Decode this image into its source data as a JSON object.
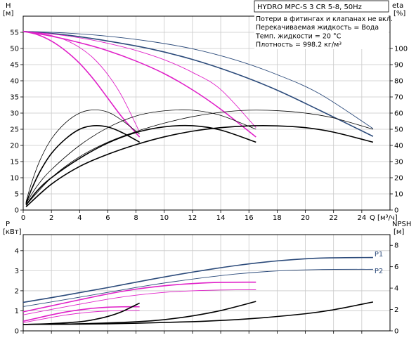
{
  "chart_data": [
    {
      "id": "performance",
      "type": "line",
      "header": "HYDRO MPC-S 3 CR 5-8, 50Hz",
      "notes": [
        "Потери в фитингах и клапанах не вкл.",
        "Перекачиваемая жидкость = Вода",
        "Темп. жидкости = 20 °C",
        "Плотность = 998.2 кг/м³"
      ],
      "xlabel": "Q [м³/ч]",
      "ylabel_left_top": "H",
      "ylabel_left_bottom": "[м]",
      "ylabel_right_top": "eta",
      "ylabel_right_bottom": "[%]",
      "xlim": [
        0,
        26
      ],
      "ylim_left": [
        0,
        60
      ],
      "ylim_right": [
        0,
        120
      ],
      "xticks": [
        0,
        2,
        4,
        6,
        8,
        10,
        12,
        14,
        16,
        18,
        20,
        22,
        24
      ],
      "yticks_left": [
        0,
        5,
        10,
        15,
        20,
        25,
        30,
        35,
        40,
        45,
        50,
        55
      ],
      "yticks_right": [
        0,
        10,
        20,
        30,
        40,
        50,
        60,
        70,
        80,
        90,
        100
      ],
      "grid": true,
      "colors": {
        "navy": "#2b4a7a",
        "magenta": "#e020c8",
        "black": "#000000",
        "grid": "#c8c8c8"
      },
      "series": [
        {
          "axis": "left",
          "color": "navy",
          "width": 1.6,
          "x": [
            0,
            3,
            6,
            9,
            12,
            15,
            18,
            21,
            24.8
          ],
          "y": [
            55.3,
            54.2,
            52.3,
            49.9,
            46.6,
            42.3,
            37.1,
            30.9,
            22.8
          ]
        },
        {
          "axis": "left",
          "color": "navy",
          "width": 0.9,
          "x": [
            0,
            3,
            6,
            9,
            12,
            15,
            18,
            21,
            24.8
          ],
          "y": [
            55.3,
            54.8,
            53.8,
            52.2,
            49.9,
            46.5,
            41.9,
            36.0,
            25.2
          ]
        },
        {
          "axis": "left",
          "color": "magenta",
          "width": 1.6,
          "x": [
            0,
            2,
            4,
            6,
            8,
            10,
            12,
            14,
            16.5
          ],
          "y": [
            55.3,
            53.8,
            51.8,
            49.3,
            46.1,
            42.2,
            37.2,
            31.2,
            22.6
          ]
        },
        {
          "axis": "left",
          "color": "magenta",
          "width": 0.9,
          "x": [
            0,
            2,
            4,
            6,
            8,
            10,
            12,
            14,
            16.5
          ],
          "y": [
            55.3,
            54.5,
            53.3,
            51.6,
            49.4,
            46.5,
            42.6,
            37.3,
            25.5
          ]
        },
        {
          "axis": "left",
          "color": "magenta",
          "width": 1.6,
          "x": [
            0,
            1,
            2,
            3,
            4,
            5,
            6,
            7,
            8.25
          ],
          "y": [
            55.3,
            54.3,
            52.3,
            49.3,
            45.4,
            40.4,
            34.6,
            28.8,
            22.6
          ]
        },
        {
          "axis": "left",
          "color": "magenta",
          "width": 0.9,
          "x": [
            0,
            1,
            2,
            3,
            4,
            5,
            6,
            7,
            8.25
          ],
          "y": [
            55.3,
            54.8,
            54.0,
            52.6,
            50.3,
            46.9,
            41.9,
            35.2,
            24.1
          ]
        },
        {
          "axis": "right",
          "color": "black",
          "width": 1.6,
          "x": [
            0.2,
            0.6,
            1.2,
            2,
            3,
            4,
            5,
            6,
            7,
            8.25
          ],
          "y": [
            4,
            13,
            24,
            35,
            44,
            50,
            52.2,
            51.4,
            48,
            42
          ]
        },
        {
          "axis": "right",
          "color": "black",
          "width": 0.8,
          "x": [
            0.2,
            0.6,
            1.2,
            2,
            3,
            4,
            5,
            6,
            7,
            8.25
          ],
          "y": [
            5,
            17,
            31,
            44,
            54,
            60,
            62,
            60.6,
            55.5,
            47
          ]
        },
        {
          "axis": "right",
          "color": "black",
          "width": 1.6,
          "x": [
            0.2,
            1,
            2,
            4,
            6,
            8,
            10,
            12,
            14,
            16.5
          ],
          "y": [
            3,
            12,
            20,
            32,
            41.5,
            48,
            51.5,
            52.2,
            49.5,
            42
          ]
        },
        {
          "axis": "right",
          "color": "black",
          "width": 0.8,
          "x": [
            0.2,
            1,
            2,
            4,
            6,
            8,
            10,
            12,
            14,
            16.5
          ],
          "y": [
            4,
            15,
            25,
            40,
            51,
            58.2,
            61.4,
            61.8,
            58.6,
            50
          ]
        },
        {
          "axis": "right",
          "color": "black",
          "width": 1.6,
          "x": [
            0.2,
            2,
            4,
            6,
            8,
            10,
            12,
            14,
            16,
            18,
            20,
            22,
            24.8
          ],
          "y": [
            2,
            16,
            27,
            34.5,
            40.5,
            45.3,
            48.8,
            51,
            52.1,
            52.1,
            51,
            48.2,
            42
          ]
        },
        {
          "axis": "right",
          "color": "black",
          "width": 0.8,
          "x": [
            0.2,
            2,
            4,
            6,
            8,
            10,
            12,
            14,
            16,
            18,
            20,
            22,
            24.8
          ],
          "y": [
            3,
            20,
            33,
            42,
            48.6,
            53.8,
            57.8,
            60.5,
            61.8,
            61.5,
            60,
            57,
            50
          ]
        }
      ]
    },
    {
      "id": "power",
      "type": "line",
      "ylabel_left_top": "P",
      "ylabel_left_bottom": "[кВт]",
      "ylabel_right_top": "NPSH",
      "ylabel_right_bottom": "[м]",
      "xlim": [
        0,
        26
      ],
      "ylim_left": [
        0,
        4.8
      ],
      "ylim_right": [
        0,
        9
      ],
      "yticks_left": [
        0,
        1,
        2,
        3,
        4
      ],
      "yticks_right": [
        0,
        2,
        4,
        6,
        8
      ],
      "grid": true,
      "labels": [
        {
          "text": "P1",
          "x": 24.9,
          "y": 3.71
        },
        {
          "text": "P2",
          "x": 24.9,
          "y": 2.87
        }
      ],
      "series": [
        {
          "axis": "left",
          "color": "navy",
          "width": 1.6,
          "x": [
            0,
            3,
            6,
            9,
            12,
            15,
            18,
            21,
            24.8
          ],
          "y": [
            1.42,
            1.78,
            2.16,
            2.56,
            2.93,
            3.25,
            3.49,
            3.63,
            3.66
          ]
        },
        {
          "axis": "left",
          "color": "navy",
          "width": 0.9,
          "x": [
            0,
            3,
            6,
            9,
            12,
            15,
            18,
            21,
            24.8
          ],
          "y": [
            1.21,
            1.56,
            1.92,
            2.28,
            2.58,
            2.83,
            2.99,
            3.06,
            3.07
          ]
        },
        {
          "axis": "left",
          "color": "magenta",
          "width": 1.6,
          "x": [
            0,
            2,
            4,
            6,
            8,
            10,
            12,
            14,
            16.5
          ],
          "y": [
            0.95,
            1.25,
            1.55,
            1.84,
            2.08,
            2.25,
            2.36,
            2.42,
            2.43
          ]
        },
        {
          "axis": "left",
          "color": "magenta",
          "width": 0.9,
          "x": [
            0,
            2,
            4,
            6,
            8,
            10,
            12,
            14,
            16.5
          ],
          "y": [
            0.8,
            1.07,
            1.33,
            1.58,
            1.78,
            1.92,
            2.0,
            2.04,
            2.05
          ]
        },
        {
          "axis": "left",
          "color": "magenta",
          "width": 1.6,
          "x": [
            0,
            1,
            2,
            3,
            4,
            5,
            6,
            7,
            8.25
          ],
          "y": [
            0.48,
            0.64,
            0.8,
            0.94,
            1.05,
            1.13,
            1.18,
            1.2,
            1.2
          ]
        },
        {
          "axis": "left",
          "color": "magenta",
          "width": 0.9,
          "x": [
            0,
            1,
            2,
            3,
            4,
            5,
            6,
            7,
            8.25
          ],
          "y": [
            0.41,
            0.54,
            0.67,
            0.79,
            0.88,
            0.95,
            0.99,
            1.01,
            1.02
          ]
        },
        {
          "axis": "right",
          "color": "black",
          "width": 1.6,
          "x": [
            0,
            2,
            4,
            5,
            6,
            7,
            8.25
          ],
          "y": [
            0.6,
            0.68,
            0.85,
            1.05,
            1.35,
            1.8,
            2.6
          ]
        },
        {
          "axis": "right",
          "color": "black",
          "width": 1.6,
          "x": [
            0,
            4,
            8,
            10,
            12,
            14,
            16.5
          ],
          "y": [
            0.6,
            0.66,
            0.85,
            1.05,
            1.4,
            1.9,
            2.75
          ]
        },
        {
          "axis": "right",
          "color": "black",
          "width": 1.6,
          "x": [
            0,
            6,
            12,
            16,
            20,
            22,
            24.8
          ],
          "y": [
            0.6,
            0.66,
            0.86,
            1.13,
            1.6,
            1.98,
            2.7
          ]
        }
      ]
    }
  ]
}
